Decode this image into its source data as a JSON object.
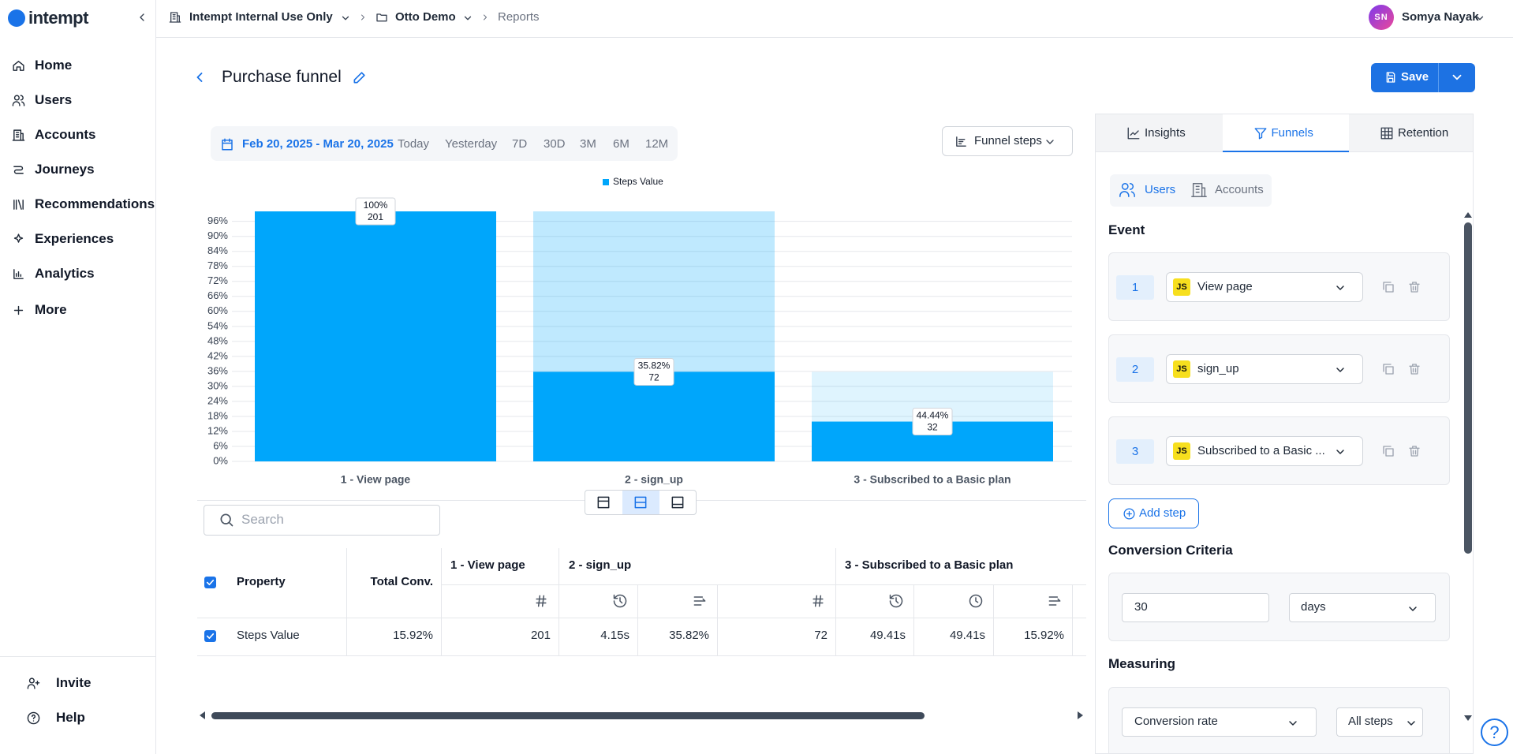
{
  "sidebar": {
    "brand": "intempt",
    "nav": [
      "Home",
      "Users",
      "Accounts",
      "Journeys",
      "Recommendations",
      "Experiences",
      "Analytics",
      "More"
    ],
    "footer": [
      "Invite",
      "Help"
    ]
  },
  "topbar": {
    "workspace": "Intempt Internal Use Only",
    "project": "Otto Demo",
    "page": "Reports",
    "user_initials": "SN",
    "user_name": "Somya Nayak"
  },
  "header": {
    "title": "Purchase funnel",
    "save": "Save"
  },
  "toolbar": {
    "date_range": "Feb 20, 2025 - Mar 20, 2025",
    "presets": [
      "Today",
      "Yesterday",
      "7D",
      "30D",
      "3M",
      "6M",
      "12M"
    ],
    "view_select": "Funnel steps"
  },
  "chart_data": {
    "type": "bar",
    "categories": [
      "1 - View page",
      "2 - sign_up",
      "3 - Subscribed to a Basic plan"
    ],
    "series": [
      {
        "name": "Steps Value",
        "color": "#00a6fb",
        "values": [
          100,
          35.82,
          15.92
        ]
      }
    ],
    "annotations": [
      [
        "100%",
        "201"
      ],
      [
        "35.82%",
        "72"
      ],
      [
        "44.44%",
        "32"
      ]
    ],
    "ylim": [
      0,
      100
    ],
    "yticks": [
      {
        "value": 0,
        "label": "0%"
      },
      {
        "value": 6,
        "label": "6%"
      },
      {
        "value": 12,
        "label": "12%"
      },
      {
        "value": 18,
        "label": "18%"
      },
      {
        "value": 24,
        "label": "24%"
      },
      {
        "value": 30,
        "label": "30%"
      },
      {
        "value": 36,
        "label": "36%"
      },
      {
        "value": 42,
        "label": "42%"
      },
      {
        "value": 48,
        "label": "48%"
      },
      {
        "value": 54,
        "label": "54%"
      },
      {
        "value": 60,
        "label": "60%"
      },
      {
        "value": 66,
        "label": "66%"
      },
      {
        "value": 72,
        "label": "72%"
      },
      {
        "value": 78,
        "label": "78%"
      },
      {
        "value": 84,
        "label": "84%"
      },
      {
        "value": 90,
        "label": "90%"
      },
      {
        "value": 96,
        "label": "96%"
      }
    ],
    "grid": true,
    "legend": "top"
  },
  "search": {
    "placeholder": "Search"
  },
  "table": {
    "property_header": "Property",
    "total_header": "Total Conv.",
    "step_headers": [
      "1 - View page",
      "2 - sign_up",
      "3 - Subscribed to a Basic plan"
    ],
    "row": {
      "property": "Steps Value",
      "total": "15.92%",
      "cells": [
        "201",
        "4.15s",
        "35.82%",
        "72",
        "49.41s",
        "49.41s",
        "15.92%"
      ]
    }
  },
  "panel": {
    "tabs": [
      "Insights",
      "Funnels",
      "Retention"
    ],
    "entity_tabs": [
      "Users",
      "Accounts"
    ],
    "event_heading": "Event",
    "steps": [
      {
        "number": "1",
        "badge": "JS",
        "event": "View page"
      },
      {
        "number": "2",
        "badge": "JS",
        "event": "sign_up"
      },
      {
        "number": "3",
        "badge": "JS",
        "event": "Subscribed to a Basic ..."
      }
    ],
    "add_step": "Add step",
    "criteria_heading": "Conversion Criteria",
    "window_value": "30",
    "window_unit": "days",
    "measuring_heading": "Measuring",
    "measure": "Conversion rate",
    "measure_steps": "All steps"
  },
  "help": "?"
}
